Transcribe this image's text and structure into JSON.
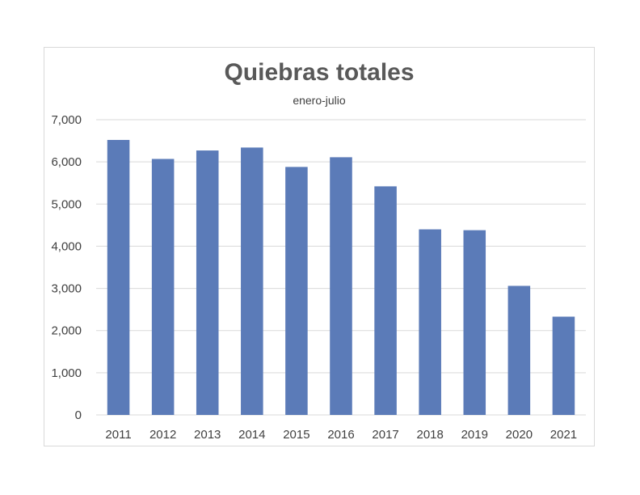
{
  "chart_data": {
    "type": "bar",
    "title": "Quiebras totales",
    "subtitle": "enero-julio",
    "xlabel": "",
    "ylabel": "",
    "categories": [
      "2011",
      "2012",
      "2013",
      "2014",
      "2015",
      "2016",
      "2017",
      "2018",
      "2019",
      "2020",
      "2021"
    ],
    "values": [
      6520,
      6070,
      6270,
      6340,
      5880,
      6110,
      5420,
      4400,
      4380,
      3060,
      2330
    ],
    "ylim": [
      0,
      7000
    ],
    "yticks": [
      0,
      1000,
      2000,
      3000,
      4000,
      5000,
      6000,
      7000
    ],
    "ytick_labels": [
      "0",
      "1,000",
      "2,000",
      "3,000",
      "4,000",
      "5,000",
      "6,000",
      "7,000"
    ],
    "grid": true,
    "legend": "none",
    "bar_color": "#5b7bb8",
    "grid_color": "#d9d9d9"
  }
}
